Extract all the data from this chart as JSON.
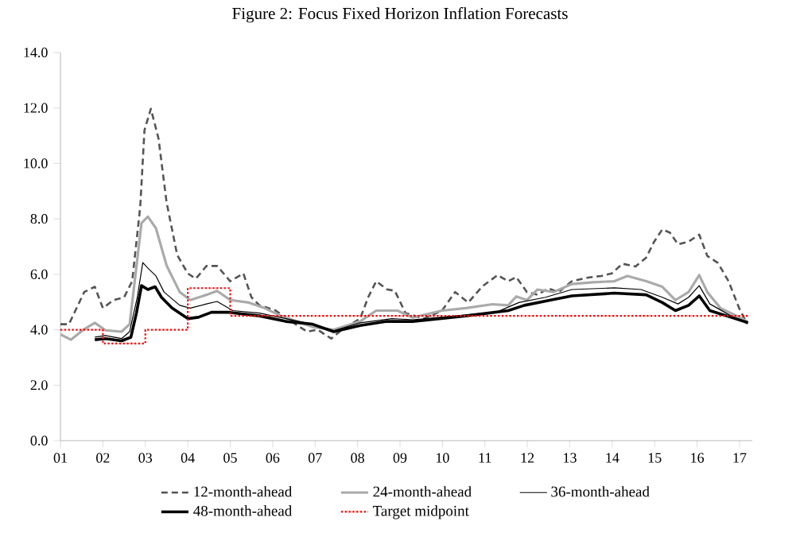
{
  "chart_data": {
    "type": "line",
    "title": "Figure 2: Focus Fixed Horizon Inflation Forecasts",
    "xlim": [
      1,
      17.3
    ],
    "xticks": [
      {
        "value": 1,
        "label": "01"
      },
      {
        "value": 2,
        "label": "02"
      },
      {
        "value": 3,
        "label": "03"
      },
      {
        "value": 4,
        "label": "04"
      },
      {
        "value": 5,
        "label": "05"
      },
      {
        "value": 6,
        "label": "06"
      },
      {
        "value": 7,
        "label": "07"
      },
      {
        "value": 8,
        "label": "08"
      },
      {
        "value": 9,
        "label": "09"
      },
      {
        "value": 10,
        "label": "10"
      },
      {
        "value": 11,
        "label": "11"
      },
      {
        "value": 12,
        "label": "12"
      },
      {
        "value": 13,
        "label": "13"
      },
      {
        "value": 14,
        "label": "14"
      },
      {
        "value": 15,
        "label": "15"
      },
      {
        "value": 16,
        "label": "16"
      },
      {
        "value": 17,
        "label": "17"
      }
    ],
    "ylim": [
      0,
      14
    ],
    "yticks": [
      {
        "value": 0,
        "label": "0.0"
      },
      {
        "value": 2,
        "label": "2.0"
      },
      {
        "value": 4,
        "label": "4.0"
      },
      {
        "value": 6,
        "label": "6.0"
      },
      {
        "value": 8,
        "label": "8.0"
      },
      {
        "value": 10,
        "label": "10.0"
      },
      {
        "value": 12,
        "label": "12.0"
      },
      {
        "value": 14,
        "label": "14.0"
      }
    ],
    "grid": false,
    "legend": "bottom",
    "marker": "none",
    "series": [
      {
        "name": "12-month-ahead",
        "color": "#555555",
        "line_style": "dashed",
        "x": [
          1.0,
          1.2,
          1.56,
          1.81,
          2.0,
          2.25,
          2.5,
          2.69,
          2.88,
          2.98,
          3.13,
          3.31,
          3.5,
          3.75,
          4.0,
          4.19,
          4.44,
          4.69,
          5.0,
          5.31,
          5.5,
          5.69,
          6.06,
          6.44,
          6.81,
          7.06,
          7.38,
          7.63,
          8.06,
          8.25,
          8.44,
          8.69,
          8.88,
          9.13,
          9.56,
          9.99,
          10.3,
          10.61,
          10.93,
          11.3,
          11.55,
          11.74,
          11.99,
          12.24,
          12.49,
          12.74,
          13.05,
          13.43,
          13.74,
          13.99,
          14.24,
          14.55,
          14.8,
          14.99,
          15.18,
          15.36,
          15.55,
          15.8,
          16.05,
          16.24,
          16.49,
          16.74,
          16.99,
          17.18
        ],
        "values": [
          4.2,
          4.2,
          5.36,
          5.55,
          4.78,
          5.07,
          5.17,
          5.75,
          8.44,
          11.2,
          11.97,
          10.9,
          8.6,
          6.7,
          6.03,
          5.84,
          6.3,
          6.3,
          5.75,
          6.03,
          5.17,
          4.88,
          4.7,
          4.3,
          3.93,
          4.0,
          3.68,
          4.0,
          4.4,
          5.17,
          5.75,
          5.46,
          5.4,
          4.6,
          4.4,
          4.69,
          5.36,
          4.98,
          5.55,
          5.97,
          5.75,
          5.9,
          5.36,
          5.26,
          5.49,
          5.36,
          5.75,
          5.88,
          5.94,
          6.03,
          6.38,
          6.28,
          6.6,
          7.18,
          7.62,
          7.5,
          7.08,
          7.18,
          7.43,
          6.66,
          6.41,
          5.75,
          4.78,
          4.21
        ]
      },
      {
        "name": "24-month-ahead",
        "color": "#aaaaaa",
        "line_style": "solid",
        "x": [
          1.0,
          1.25,
          1.56,
          1.81,
          2.06,
          2.44,
          2.63,
          2.75,
          2.91,
          3.06,
          3.25,
          3.5,
          3.81,
          4.06,
          4.44,
          4.69,
          5.0,
          5.44,
          5.81,
          6.19,
          6.94,
          7.44,
          8.06,
          8.44,
          8.94,
          9.3,
          9.99,
          10.55,
          11.18,
          11.55,
          11.74,
          11.99,
          12.24,
          12.62,
          13.05,
          13.55,
          14.05,
          14.36,
          14.8,
          15.18,
          15.49,
          15.8,
          16.05,
          16.24,
          16.55,
          16.93,
          17.18
        ],
        "values": [
          3.83,
          3.64,
          4.02,
          4.25,
          3.98,
          3.93,
          4.2,
          5.75,
          7.85,
          8.08,
          7.66,
          6.32,
          5.36,
          5.07,
          5.26,
          5.4,
          5.07,
          4.98,
          4.78,
          4.5,
          4.1,
          4.0,
          4.3,
          4.69,
          4.69,
          4.44,
          4.69,
          4.78,
          4.92,
          4.88,
          5.2,
          5.07,
          5.45,
          5.36,
          5.65,
          5.71,
          5.75,
          5.94,
          5.75,
          5.55,
          5.07,
          5.36,
          5.97,
          5.36,
          4.78,
          4.5,
          4.3
        ]
      },
      {
        "name": "36-month-ahead",
        "color": "#000000",
        "line_style": "solid",
        "x": [
          1.81,
          2.06,
          2.44,
          2.63,
          2.81,
          2.94,
          3.06,
          3.25,
          3.44,
          3.81,
          4.06,
          4.44,
          4.69,
          5.06,
          5.69,
          6.31,
          6.94,
          7.44,
          8.06,
          8.81,
          9.3,
          10.55,
          11.3,
          11.8,
          12.43,
          13.05,
          14.05,
          14.68,
          15.18,
          15.55,
          15.8,
          16.05,
          16.3,
          16.8,
          17.18
        ],
        "values": [
          3.73,
          3.79,
          3.68,
          3.93,
          5.17,
          6.42,
          6.22,
          5.94,
          5.36,
          4.88,
          4.78,
          4.93,
          5.02,
          4.69,
          4.6,
          4.4,
          4.2,
          3.96,
          4.25,
          4.4,
          4.36,
          4.53,
          4.65,
          4.98,
          5.17,
          5.45,
          5.51,
          5.45,
          5.17,
          4.93,
          5.17,
          5.59,
          4.93,
          4.5,
          4.25
        ]
      },
      {
        "name": "48-month-ahead",
        "color": "#000000",
        "line_style": "solid",
        "x": [
          1.81,
          2.06,
          2.44,
          2.66,
          2.79,
          2.91,
          3.06,
          3.23,
          3.38,
          3.63,
          4.0,
          4.25,
          4.56,
          4.94,
          5.69,
          6.31,
          6.94,
          7.44,
          8.06,
          8.69,
          9.3,
          10.55,
          11.55,
          11.93,
          12.55,
          13.05,
          14.05,
          14.8,
          15.18,
          15.49,
          15.8,
          16.05,
          16.3,
          16.8,
          17.2
        ],
        "values": [
          3.64,
          3.68,
          3.6,
          3.73,
          4.6,
          5.59,
          5.45,
          5.55,
          5.17,
          4.78,
          4.4,
          4.45,
          4.63,
          4.63,
          4.5,
          4.3,
          4.2,
          3.93,
          4.15,
          4.3,
          4.3,
          4.5,
          4.69,
          4.88,
          5.07,
          5.22,
          5.32,
          5.26,
          4.98,
          4.69,
          4.88,
          5.22,
          4.69,
          4.45,
          4.25
        ]
      },
      {
        "name": "Target midpoint",
        "type": "step",
        "color": "#ff0000",
        "line_style": "dotted",
        "x": [
          1,
          2,
          3,
          4,
          5,
          17.2
        ],
        "values": [
          4.0,
          3.5,
          4.0,
          5.5,
          4.5,
          4.5
        ]
      }
    ]
  }
}
